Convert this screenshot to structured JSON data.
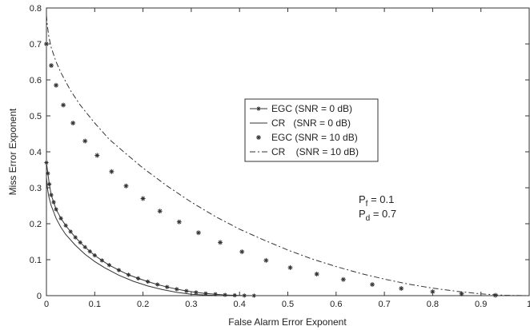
{
  "chart_data": {
    "type": "line",
    "xlabel": "False Alarm Error Exponent",
    "ylabel": "Miss Error Exponent",
    "xlim": [
      0,
      1
    ],
    "ylim": [
      0,
      0.8
    ],
    "xticks": [
      "0",
      "0.1",
      "0.2",
      "0.3",
      "0.4",
      "0.5",
      "0.6",
      "0.7",
      "0.8",
      "0.9",
      "1"
    ],
    "yticks": [
      "0",
      "0.1",
      "0.2",
      "0.3",
      "0.4",
      "0.5",
      "0.6",
      "0.7",
      "0.8"
    ],
    "grid": false,
    "legend_position": "center",
    "annotation": {
      "line1": {
        "symbol": "P",
        "sub": "f",
        "text": " = 0.1"
      },
      "line2": {
        "symbol": "P",
        "sub": "d",
        "text": " = 0.7"
      }
    },
    "series": [
      {
        "name": "EGC (SNR = 0 dB)",
        "style": "line-star",
        "color": "#333333",
        "x": [
          0,
          0.003,
          0.006,
          0.01,
          0.015,
          0.02,
          0.03,
          0.04,
          0.05,
          0.06,
          0.07,
          0.08,
          0.09,
          0.1,
          0.115,
          0.13,
          0.15,
          0.17,
          0.19,
          0.21,
          0.23,
          0.25,
          0.27,
          0.29,
          0.31,
          0.33,
          0.35,
          0.37,
          0.39,
          0.41,
          0.43
        ],
        "y": [
          0.37,
          0.34,
          0.31,
          0.28,
          0.26,
          0.24,
          0.215,
          0.195,
          0.178,
          0.162,
          0.148,
          0.135,
          0.123,
          0.112,
          0.098,
          0.085,
          0.071,
          0.058,
          0.048,
          0.039,
          0.031,
          0.024,
          0.018,
          0.013,
          0.009,
          0.006,
          0.004,
          0.002,
          0.001,
          0.0003,
          0
        ]
      },
      {
        "name": "CR   (SNR = 0 dB)",
        "style": "solid",
        "color": "#333333",
        "x": [
          0,
          0.002,
          0.005,
          0.01,
          0.02,
          0.03,
          0.04,
          0.06,
          0.08,
          0.1,
          0.12,
          0.15,
          0.18,
          0.21,
          0.24,
          0.27,
          0.3,
          0.33,
          0.36,
          0.38
        ],
        "y": [
          0.33,
          0.3,
          0.275,
          0.25,
          0.215,
          0.19,
          0.17,
          0.14,
          0.115,
          0.095,
          0.078,
          0.057,
          0.04,
          0.027,
          0.017,
          0.009,
          0.004,
          0.0015,
          0.0003,
          0
        ]
      },
      {
        "name": "EGC (SNR = 10 dB)",
        "style": "star",
        "color": "#333333",
        "x": [
          0,
          0.01,
          0.02,
          0.035,
          0.055,
          0.08,
          0.105,
          0.135,
          0.165,
          0.2,
          0.235,
          0.275,
          0.315,
          0.36,
          0.405,
          0.455,
          0.505,
          0.56,
          0.615,
          0.675,
          0.735,
          0.8,
          0.86,
          0.93
        ],
        "y": [
          0.7,
          0.64,
          0.585,
          0.53,
          0.48,
          0.43,
          0.39,
          0.345,
          0.305,
          0.27,
          0.235,
          0.205,
          0.175,
          0.148,
          0.122,
          0.098,
          0.078,
          0.06,
          0.045,
          0.031,
          0.02,
          0.011,
          0.005,
          0.001
        ]
      },
      {
        "name": "CR    (SNR = 10 dB)",
        "style": "dashdot",
        "color": "#333333",
        "x": [
          0,
          0.002,
          0.005,
          0.01,
          0.02,
          0.03,
          0.05,
          0.07,
          0.1,
          0.13,
          0.16,
          0.2,
          0.25,
          0.3,
          0.35,
          0.4,
          0.45,
          0.5,
          0.55,
          0.6,
          0.65,
          0.7,
          0.75,
          0.8,
          0.85,
          0.9,
          0.95,
          1.0
        ],
        "y": [
          0.78,
          0.75,
          0.72,
          0.69,
          0.65,
          0.62,
          0.57,
          0.53,
          0.48,
          0.435,
          0.4,
          0.355,
          0.305,
          0.26,
          0.22,
          0.185,
          0.155,
          0.127,
          0.102,
          0.081,
          0.062,
          0.046,
          0.032,
          0.021,
          0.012,
          0.005,
          0.001,
          0
        ]
      }
    ]
  }
}
